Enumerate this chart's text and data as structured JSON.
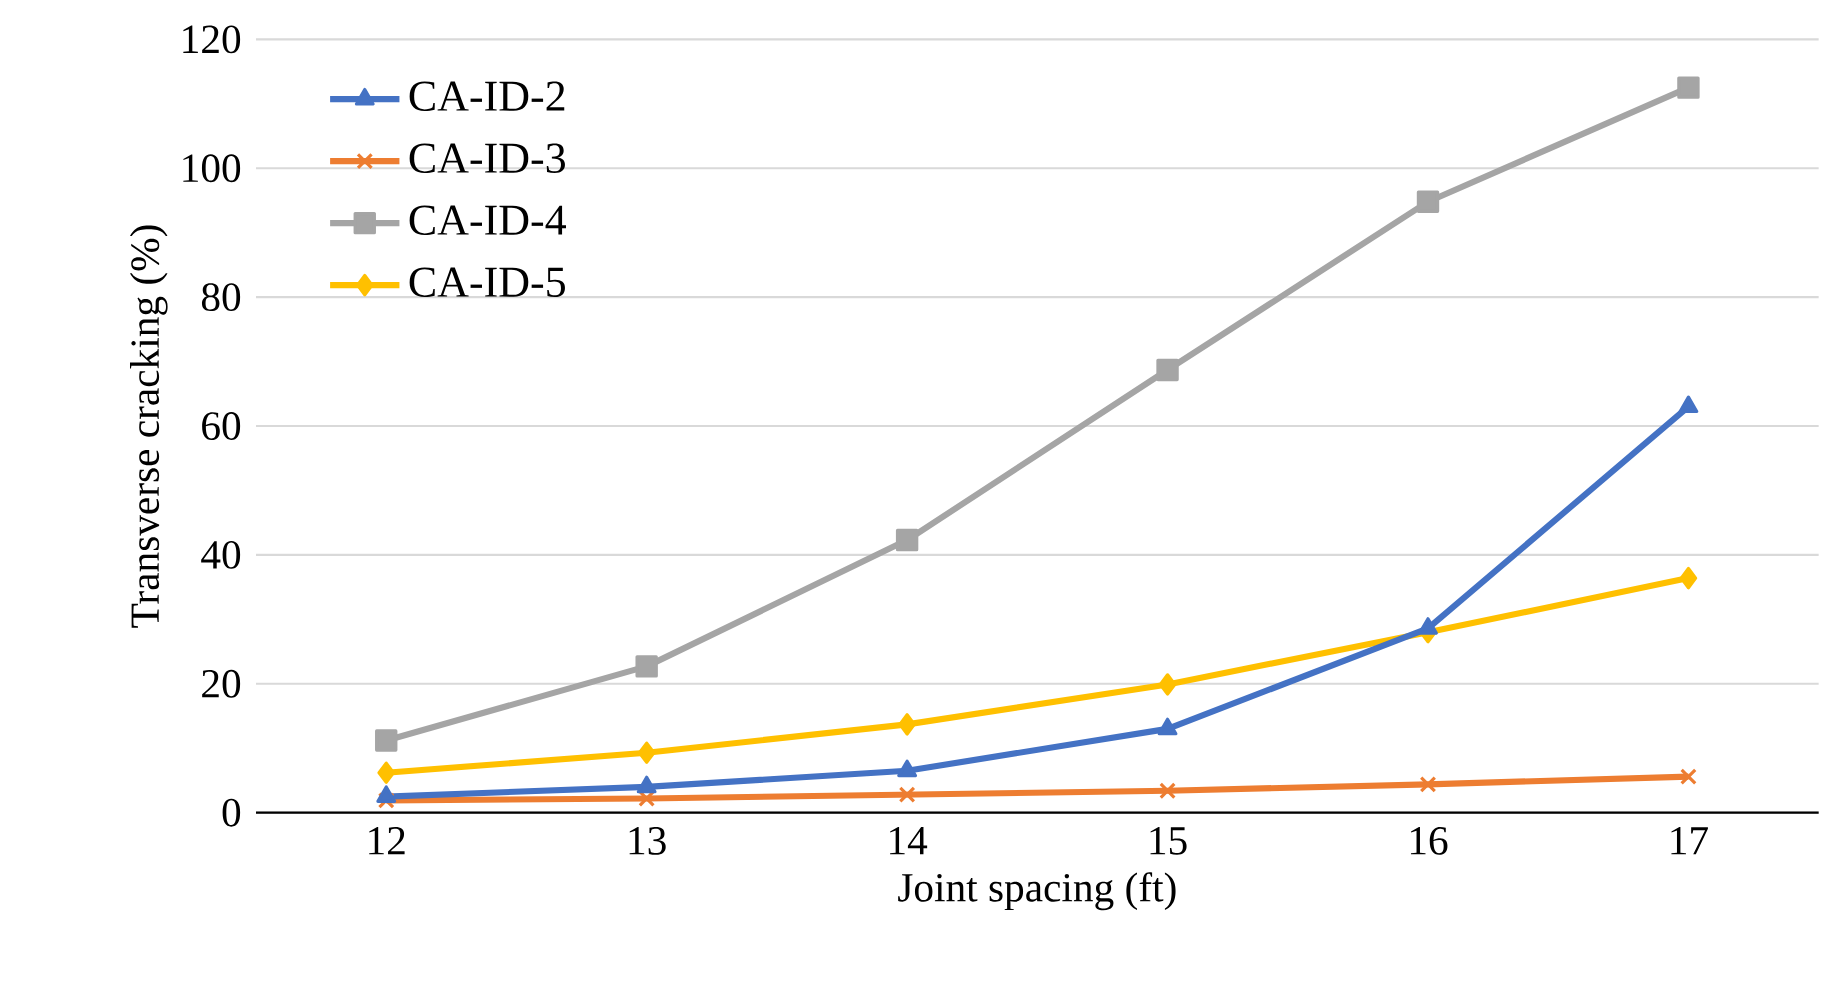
{
  "chart_data": {
    "type": "line",
    "xlabel": "Joint spacing (ft)",
    "ylabel": "Transverse cracking (%)",
    "categories": [
      "12",
      "13",
      "14",
      "15",
      "16",
      "17"
    ],
    "series": [
      {
        "name": "CA-ID-2",
        "color": "#4472c4",
        "marker": "triangle",
        "values": [
          2.5,
          4,
          6.5,
          13,
          28.6,
          63
        ]
      },
      {
        "name": "CA-ID-3",
        "color": "#ed7d31",
        "marker": "cross",
        "values": [
          1.9,
          2.2,
          2.8,
          3.4,
          4.4,
          5.6
        ]
      },
      {
        "name": "CA-ID-4",
        "color": "#a5a5a5",
        "marker": "square",
        "values": [
          11.2,
          22.7,
          42.3,
          68.7,
          94.8,
          112.5
        ]
      },
      {
        "name": "CA-ID-5",
        "color": "#ffc000",
        "marker": "diamond",
        "values": [
          6.2,
          9.3,
          13.7,
          19.9,
          28,
          36.4
        ]
      }
    ],
    "ylim": [
      0,
      120
    ],
    "yticks": [
      0,
      20,
      40,
      60,
      80,
      100,
      120
    ],
    "grid": "y",
    "legend": "top left"
  }
}
